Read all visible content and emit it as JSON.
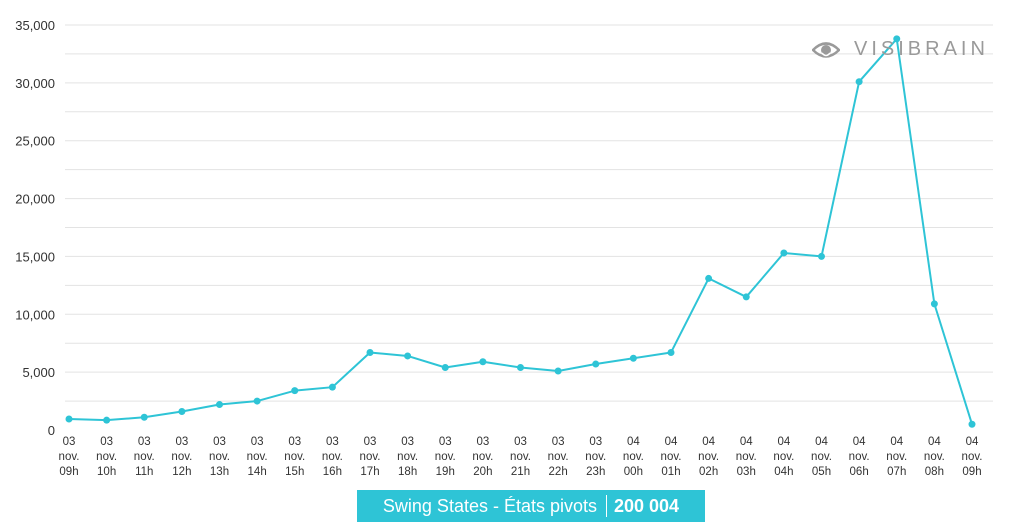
{
  "chart_data": {
    "type": "line",
    "title": "",
    "xlabel": "",
    "ylabel": "",
    "ylim": [
      0,
      35000
    ],
    "yticks": [
      "0",
      "5,000",
      "10,000",
      "15,000",
      "20,000",
      "25,000",
      "30,000",
      "35,000"
    ],
    "ytick_values": [
      0,
      5000,
      10000,
      15000,
      20000,
      25000,
      30000,
      35000
    ],
    "categories": [
      [
        "03",
        "nov.",
        "09h"
      ],
      [
        "03",
        "nov.",
        "10h"
      ],
      [
        "03",
        "nov.",
        "11h"
      ],
      [
        "03",
        "nov.",
        "12h"
      ],
      [
        "03",
        "nov.",
        "13h"
      ],
      [
        "03",
        "nov.",
        "14h"
      ],
      [
        "03",
        "nov.",
        "15h"
      ],
      [
        "03",
        "nov.",
        "16h"
      ],
      [
        "03",
        "nov.",
        "17h"
      ],
      [
        "03",
        "nov.",
        "18h"
      ],
      [
        "03",
        "nov.",
        "19h"
      ],
      [
        "03",
        "nov.",
        "20h"
      ],
      [
        "03",
        "nov.",
        "21h"
      ],
      [
        "03",
        "nov.",
        "22h"
      ],
      [
        "03",
        "nov.",
        "23h"
      ],
      [
        "04",
        "nov.",
        "00h"
      ],
      [
        "04",
        "nov.",
        "01h"
      ],
      [
        "04",
        "nov.",
        "02h"
      ],
      [
        "04",
        "nov.",
        "03h"
      ],
      [
        "04",
        "nov.",
        "04h"
      ],
      [
        "04",
        "nov.",
        "05h"
      ],
      [
        "04",
        "nov.",
        "06h"
      ],
      [
        "04",
        "nov.",
        "07h"
      ],
      [
        "04",
        "nov.",
        "08h"
      ],
      [
        "04",
        "nov.",
        "09h"
      ]
    ],
    "series": [
      {
        "name": "Swing States - États pivots",
        "color": "#2ec4d6",
        "values": [
          950,
          850,
          1100,
          1600,
          2200,
          2500,
          3400,
          3700,
          6700,
          6400,
          5400,
          5900,
          5400,
          5100,
          5700,
          6200,
          6700,
          13100,
          11500,
          15300,
          15000,
          30100,
          33800,
          10900,
          500
        ]
      }
    ]
  },
  "legend": {
    "label": "Swing States - États pivots",
    "total": "200 004",
    "color": "#2ec4d6"
  },
  "watermark": {
    "brand": "VISIBRAIN"
  }
}
